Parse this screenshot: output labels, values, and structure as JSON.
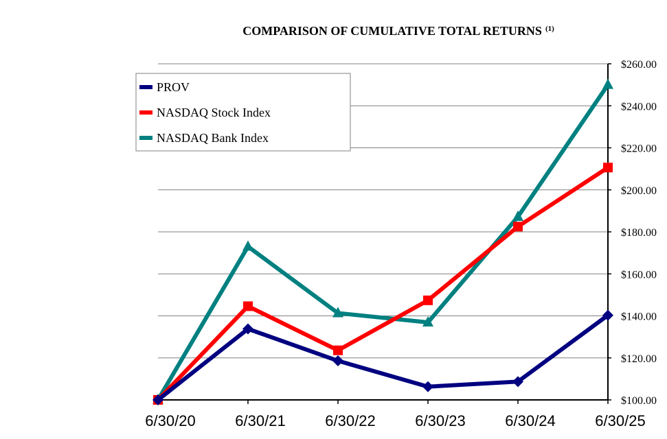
{
  "chart_data": {
    "type": "line",
    "title": "COMPARISON OF CUMULATIVE TOTAL RETURNS",
    "title_superscript": "(1)",
    "categories": [
      "6/30/20",
      "6/30/21",
      "6/30/22",
      "6/30/23",
      "6/30/24",
      "6/30/25"
    ],
    "yticks": [
      "$100.00",
      "$120.00",
      "$140.00",
      "$160.00",
      "$180.00",
      "$200.00",
      "$220.00",
      "$240.00",
      "$260.00"
    ],
    "ylim": [
      100,
      260
    ],
    "grid": true,
    "legend_position": "top-left",
    "series": [
      {
        "name": "PROV",
        "color": "#000080",
        "marker": "diamond",
        "values": [
          100,
          133.8,
          118.6,
          106.3,
          108.7,
          140.3
        ]
      },
      {
        "name": "NASDAQ Stock Index",
        "color": "#ff0000",
        "marker": "square",
        "values": [
          100,
          144.6,
          123.6,
          147.4,
          182.5,
          210.6
        ]
      },
      {
        "name": "NASDAQ Bank Index",
        "color": "#008080",
        "marker": "triangle",
        "values": [
          100,
          173.0,
          141.3,
          136.9,
          187.2,
          250.0
        ]
      }
    ]
  }
}
